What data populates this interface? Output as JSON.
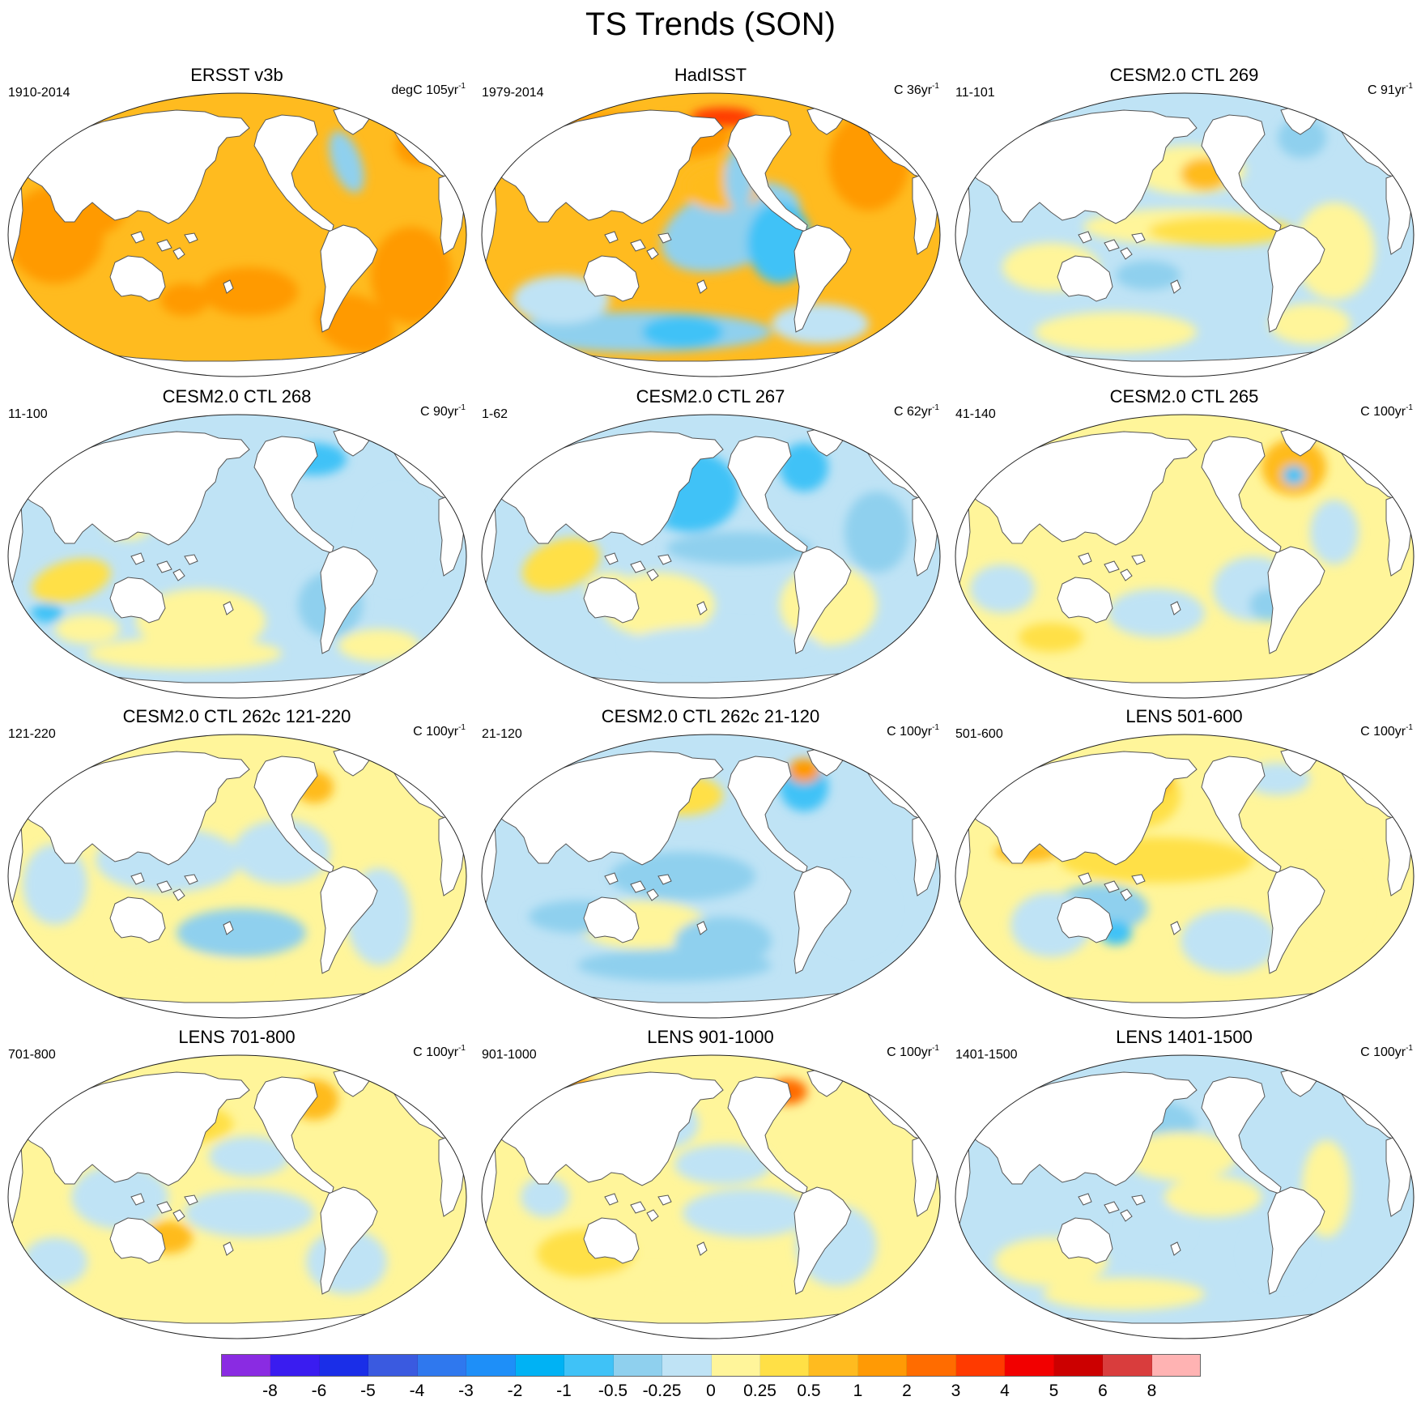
{
  "figure": {
    "title": "TS Trends (SON)"
  },
  "panels": [
    {
      "title": "ERSST v3b",
      "period": "1910-2014",
      "units_prefix": "degC 105yr",
      "units_exp": "-1",
      "style": "ersst"
    },
    {
      "title": "HadISST",
      "period": "1979-2014",
      "units_prefix": "C 36yr",
      "units_exp": "-1",
      "style": "hadisst"
    },
    {
      "title": "CESM2.0 CTL 269",
      "period": "11-101",
      "units_prefix": "C 91yr",
      "units_exp": "-1",
      "style": "elnino"
    },
    {
      "title": "CESM2.0 CTL 268",
      "period": "11-100",
      "units_prefix": "C 90yr",
      "units_exp": "-1",
      "style": "cool"
    },
    {
      "title": "CESM2.0 CTL 267",
      "period": "1-62",
      "units_prefix": "C 62yr",
      "units_exp": "-1",
      "style": "coolstrong"
    },
    {
      "title": "CESM2.0 CTL 265",
      "period": "41-140",
      "units_prefix": "C 100yr",
      "units_exp": "-1",
      "style": "warmmix"
    },
    {
      "title": "CESM2.0 CTL 262c 121-220",
      "period": "121-220",
      "units_prefix": "C 100yr",
      "units_exp": "-1",
      "style": "mixcool"
    },
    {
      "title": "CESM2.0 CTL 262c 21-120",
      "period": "21-120",
      "units_prefix": "C 100yr",
      "units_exp": "-1",
      "style": "cool2"
    },
    {
      "title": "LENS 501-600",
      "period": "501-600",
      "units_prefix": "C 100yr",
      "units_exp": "-1",
      "style": "elnino2"
    },
    {
      "title": "LENS 701-800",
      "period": "701-800",
      "units_prefix": "C 100yr",
      "units_exp": "-1",
      "style": "mixwarm"
    },
    {
      "title": "LENS 901-1000",
      "period": "901-1000",
      "units_prefix": "C 100yr",
      "units_exp": "-1",
      "style": "mixwarm2"
    },
    {
      "title": "LENS 1401-1500",
      "period": "1401-1500",
      "units_prefix": "C 100yr",
      "units_exp": "-1",
      "style": "mixcool2"
    }
  ],
  "colorbar": {
    "labels": [
      "-8",
      "-6",
      "-5",
      "-4",
      "-3",
      "-2",
      "-1",
      "-0.5",
      "-0.25",
      "0",
      "0.25",
      "0.5",
      "1",
      "2",
      "3",
      "4",
      "5",
      "6",
      "8"
    ],
    "colors": [
      "#8a2be2",
      "#3a1cf0",
      "#1a2ee8",
      "#3a5ae0",
      "#2f78ee",
      "#1e8ff8",
      "#00b2f4",
      "#3fc2f7",
      "#8fd0ee",
      "#bfe3f5",
      "#fff59a",
      "#ffe046",
      "#ffbb1f",
      "#ff9a05",
      "#ff6c00",
      "#ff3a00",
      "#f20000",
      "#cc0000",
      "#d93d3d",
      "#ffb3b3"
    ]
  }
}
